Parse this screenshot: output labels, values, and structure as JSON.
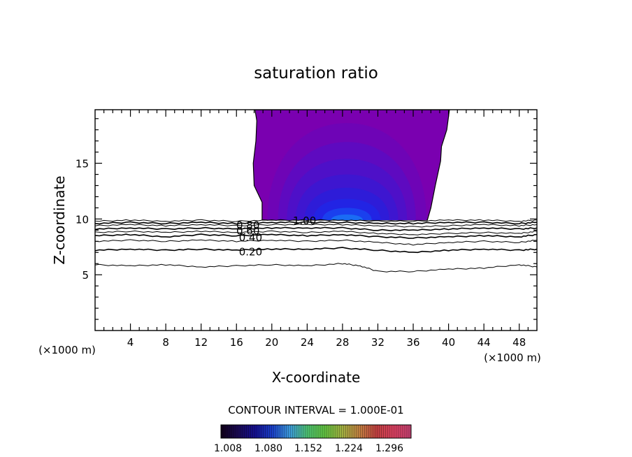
{
  "chart_data": {
    "type": "contour",
    "title": "saturation ratio",
    "xlabel": "X-coordinate",
    "ylabel": "Z-coordinate",
    "x_unit_left": "(×1000 m)",
    "x_unit_right": "(×1000 m)",
    "xlim": [
      0,
      50
    ],
    "ylim": [
      0,
      19.8
    ],
    "x_ticks": [
      4,
      8,
      12,
      16,
      20,
      24,
      28,
      32,
      36,
      40,
      44,
      48
    ],
    "y_ticks": [
      5,
      10,
      15
    ],
    "contour_interval_text": "CONTOUR INTERVAL = 1.000E-01",
    "contour_labels": [
      {
        "text": "1.00",
        "x": 23.7,
        "z": 9.9
      },
      {
        "text": "0.80",
        "x": 17.3,
        "z": 9.5
      },
      {
        "text": "0.60",
        "x": 17.3,
        "z": 9.0
      },
      {
        "text": "0.40",
        "x": 17.6,
        "z": 8.4
      },
      {
        "text": "0.20",
        "x": 17.6,
        "z": 7.1
      }
    ],
    "contour_lines": [
      {
        "level": 0.2,
        "points": [
          [
            0,
            7.2
          ],
          [
            4,
            7.3
          ],
          [
            8,
            7.2
          ],
          [
            12,
            7.3
          ],
          [
            16,
            7.2
          ],
          [
            20,
            7.3
          ],
          [
            24,
            7.3
          ],
          [
            28,
            7.4
          ],
          [
            32,
            7.2
          ],
          [
            36,
            7.0
          ],
          [
            40,
            7.2
          ],
          [
            44,
            7.3
          ],
          [
            48,
            7.2
          ],
          [
            50,
            7.3
          ]
        ]
      },
      {
        "level": 0.1,
        "points": [
          [
            0,
            5.9
          ],
          [
            4,
            5.8
          ],
          [
            8,
            5.9
          ],
          [
            12,
            5.7
          ],
          [
            16,
            5.8
          ],
          [
            20,
            5.9
          ],
          [
            24,
            5.8
          ],
          [
            28,
            6.0
          ],
          [
            30,
            5.8
          ],
          [
            32,
            5.3
          ],
          [
            36,
            5.3
          ],
          [
            40,
            5.5
          ],
          [
            44,
            5.6
          ],
          [
            48,
            5.9
          ],
          [
            50,
            5.7
          ]
        ]
      },
      {
        "level": 0.3,
        "points": [
          [
            0,
            8.0
          ],
          [
            4,
            8.1
          ],
          [
            8,
            8.0
          ],
          [
            12,
            8.1
          ],
          [
            16,
            8.0
          ],
          [
            20,
            8.1
          ],
          [
            24,
            8.0
          ],
          [
            28,
            8.1
          ],
          [
            32,
            7.9
          ],
          [
            36,
            7.7
          ],
          [
            40,
            7.9
          ],
          [
            44,
            8.0
          ],
          [
            48,
            7.9
          ],
          [
            50,
            8.1
          ]
        ]
      },
      {
        "level": 0.4,
        "points": [
          [
            0,
            8.5
          ],
          [
            4,
            8.6
          ],
          [
            8,
            8.4
          ],
          [
            12,
            8.6
          ],
          [
            16,
            8.5
          ],
          [
            20,
            8.6
          ],
          [
            24,
            8.5
          ],
          [
            28,
            8.6
          ],
          [
            32,
            8.4
          ],
          [
            36,
            8.3
          ],
          [
            40,
            8.4
          ],
          [
            44,
            8.5
          ],
          [
            48,
            8.4
          ],
          [
            50,
            8.6
          ]
        ]
      },
      {
        "level": 0.5,
        "points": [
          [
            0,
            8.8
          ],
          [
            4,
            8.9
          ],
          [
            8,
            8.8
          ],
          [
            12,
            8.9
          ],
          [
            16,
            8.8
          ],
          [
            20,
            8.9
          ],
          [
            24,
            8.8
          ],
          [
            28,
            8.9
          ],
          [
            32,
            8.7
          ],
          [
            36,
            8.6
          ],
          [
            40,
            8.7
          ],
          [
            44,
            8.8
          ],
          [
            48,
            8.7
          ],
          [
            50,
            8.9
          ]
        ]
      },
      {
        "level": 0.6,
        "points": [
          [
            0,
            9.1
          ],
          [
            4,
            9.2
          ],
          [
            8,
            9.1
          ],
          [
            12,
            9.2
          ],
          [
            16,
            9.1
          ],
          [
            20,
            9.2
          ],
          [
            24,
            9.2
          ],
          [
            28,
            9.2
          ],
          [
            32,
            9.0
          ],
          [
            36,
            9.0
          ],
          [
            40,
            9.1
          ],
          [
            44,
            9.2
          ],
          [
            48,
            9.1
          ],
          [
            50,
            9.2
          ]
        ]
      },
      {
        "level": 0.7,
        "points": [
          [
            0,
            9.4
          ],
          [
            4,
            9.5
          ],
          [
            8,
            9.4
          ],
          [
            12,
            9.5
          ],
          [
            16,
            9.4
          ],
          [
            20,
            9.5
          ],
          [
            24,
            9.5
          ],
          [
            28,
            9.5
          ],
          [
            32,
            9.4
          ],
          [
            36,
            9.3
          ],
          [
            40,
            9.4
          ],
          [
            44,
            9.5
          ],
          [
            48,
            9.4
          ],
          [
            50,
            9.5
          ]
        ]
      },
      {
        "level": 0.8,
        "points": [
          [
            0,
            9.6
          ],
          [
            4,
            9.7
          ],
          [
            8,
            9.6
          ],
          [
            12,
            9.7
          ],
          [
            16,
            9.6
          ],
          [
            20,
            9.7
          ],
          [
            24,
            9.7
          ],
          [
            28,
            9.7
          ],
          [
            32,
            9.6
          ],
          [
            36,
            9.6
          ],
          [
            40,
            9.7
          ],
          [
            44,
            9.7
          ],
          [
            48,
            9.6
          ],
          [
            50,
            9.7
          ]
        ]
      },
      {
        "level": 0.9,
        "points": [
          [
            0,
            9.8
          ],
          [
            4,
            9.9
          ],
          [
            8,
            9.8
          ],
          [
            12,
            9.9
          ],
          [
            16,
            9.8
          ],
          [
            20,
            9.9
          ],
          [
            24,
            9.9
          ],
          [
            28,
            9.9
          ],
          [
            32,
            9.8
          ],
          [
            36,
            9.8
          ],
          [
            40,
            9.9
          ],
          [
            44,
            9.9
          ],
          [
            48,
            9.8
          ],
          [
            50,
            9.9
          ]
        ]
      }
    ],
    "supersat_region_outline": [
      [
        18.9,
        9.9
      ],
      [
        18.9,
        11.5
      ],
      [
        18.0,
        13.0
      ],
      [
        17.9,
        15.0
      ],
      [
        18.2,
        17.0
      ],
      [
        18.3,
        18.8
      ],
      [
        18.1,
        19.8
      ],
      [
        40.1,
        19.8
      ],
      [
        39.8,
        18.0
      ],
      [
        39.2,
        16.5
      ],
      [
        39.1,
        15.2
      ],
      [
        38.5,
        13.0
      ],
      [
        38.0,
        11.0
      ],
      [
        37.6,
        9.9
      ]
    ],
    "filled_levels": [
      {
        "value": 1.02,
        "color": "#7a00b0",
        "shape": {
          "cx": 28.5,
          "bot": 9.9,
          "half_w": 10.0,
          "top": 19.8
        }
      },
      {
        "value": 1.06,
        "color": "#6e04b6",
        "shape": {
          "cx": 28.5,
          "bot": 9.9,
          "half_w": 9.0,
          "top": 18.6
        }
      },
      {
        "value": 1.1,
        "color": "#5e0ac0",
        "shape": {
          "cx": 28.5,
          "bot": 9.9,
          "half_w": 7.8,
          "top": 16.9
        }
      },
      {
        "value": 1.14,
        "color": "#4e10c8",
        "shape": {
          "cx": 28.5,
          "bot": 9.9,
          "half_w": 6.8,
          "top": 15.4
        }
      },
      {
        "value": 1.18,
        "color": "#3e16d0",
        "shape": {
          "cx": 28.5,
          "bot": 9.9,
          "half_w": 5.8,
          "top": 14.0
        }
      },
      {
        "value": 1.22,
        "color": "#2e1cd8",
        "shape": {
          "cx": 28.5,
          "bot": 9.9,
          "half_w": 4.8,
          "top": 12.8
        }
      },
      {
        "value": 1.26,
        "color": "#2224e4",
        "shape": {
          "cx": 28.5,
          "bot": 9.9,
          "half_w": 3.8,
          "top": 11.8
        }
      },
      {
        "value": 1.29,
        "color": "#1a40ee",
        "shape": {
          "cx": 28.5,
          "bot": 9.9,
          "half_w": 2.8,
          "top": 11.0
        }
      },
      {
        "value": 1.31,
        "color": "#1a6cf4",
        "shape": {
          "cx": 28.5,
          "bot": 9.9,
          "half_w": 1.8,
          "top": 10.4
        }
      }
    ],
    "colorbar": {
      "labels": [
        "1.008",
        "1.080",
        "1.152",
        "1.224",
        "1.296"
      ],
      "stops": [
        "#100018",
        "#1a0a55",
        "#151090",
        "#1a40c8",
        "#3c9ad8",
        "#4cc070",
        "#60c040",
        "#a0b040",
        "#c08040",
        "#c04040",
        "#d84060",
        "#c04070"
      ]
    }
  }
}
